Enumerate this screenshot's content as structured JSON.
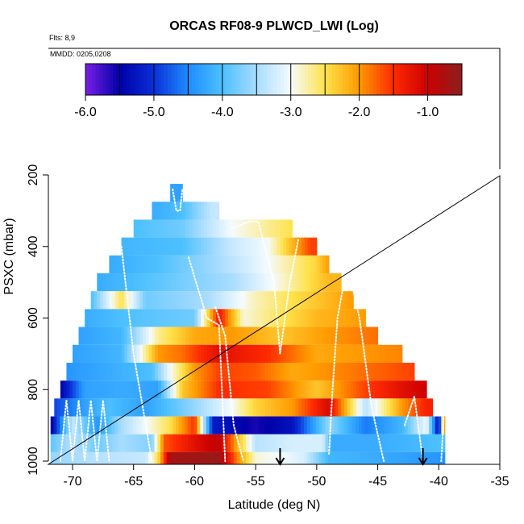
{
  "chart_data": {
    "type": "heatmap",
    "title": "ORCAS RF08-9 PLWCD_LWI (Log)",
    "flights_label": "Flts: 8,9",
    "dates_label": "MMDD: 0205,0208",
    "xlabel": "Latitude (deg N)",
    "ylabel": "PSXC (mbar)",
    "xlim": [
      -72,
      -35
    ],
    "ylim": [
      1000,
      100
    ],
    "x_ticks": [
      -70,
      -65,
      -60,
      -55,
      -50,
      -45,
      -40,
      -35
    ],
    "x_tick_labels": [
      "-70",
      "-65",
      "-60",
      "-55",
      "-50",
      "-45",
      "-40",
      "-35"
    ],
    "y_ticks": [
      200,
      400,
      600,
      800,
      1000
    ],
    "y_tick_labels": [
      "200",
      "400",
      "600",
      "800",
      "1000"
    ],
    "colorbar": {
      "range": [
        -6.0,
        -0.5
      ],
      "ticks": [
        -6.0,
        -5.0,
        -4.0,
        -3.0,
        -2.0,
        -1.0
      ],
      "tick_labels": [
        "-6.0",
        "-5.0",
        "-4.0",
        "-3.0",
        "-2.0",
        "-1.0"
      ],
      "stops": [
        {
          "v": -6.0,
          "c": "#7a1fe6"
        },
        {
          "v": -5.5,
          "c": "#0000a8"
        },
        {
          "v": -5.0,
          "c": "#0a2fd8"
        },
        {
          "v": -4.5,
          "c": "#1e8cff"
        },
        {
          "v": -4.0,
          "c": "#4cc0ff"
        },
        {
          "v": -3.5,
          "c": "#a8dcff"
        },
        {
          "v": -3.0,
          "c": "#f4fbff"
        },
        {
          "v": -2.5,
          "c": "#ffe24a"
        },
        {
          "v": -2.0,
          "c": "#ff9a00"
        },
        {
          "v": -1.5,
          "c": "#ff2a00"
        },
        {
          "v": -1.0,
          "c": "#cc0000"
        },
        {
          "v": -0.5,
          "c": "#8b2020"
        }
      ]
    },
    "profile_markers_lat": [
      -53,
      -41.3
    ],
    "bands": [
      {
        "p": 250,
        "lat_min": -62,
        "lat_max": -61,
        "anchors": [
          [
            -62,
            -4.3
          ],
          [
            -61,
            -4.3
          ]
        ]
      },
      {
        "p": 300,
        "lat_min": -63.5,
        "lat_max": -58,
        "anchors": [
          [
            -63.5,
            -4.2
          ],
          [
            -61,
            -4.0
          ],
          [
            -58.5,
            -3.3
          ]
        ]
      },
      {
        "p": 350,
        "lat_min": -65,
        "lat_max": -52,
        "anchors": [
          [
            -65,
            -4.0
          ],
          [
            -61,
            -3.8
          ],
          [
            -57,
            -3.0
          ],
          [
            -55,
            -2.8
          ],
          [
            -52,
            -2.5
          ]
        ]
      },
      {
        "p": 400,
        "lat_min": -66,
        "lat_max": -50,
        "anchors": [
          [
            -66,
            -4.1
          ],
          [
            -61,
            -4.0
          ],
          [
            -57,
            -3.3
          ],
          [
            -54,
            -3.0
          ],
          [
            -50.5,
            -1.6
          ]
        ]
      },
      {
        "p": 450,
        "lat_min": -67,
        "lat_max": -49,
        "anchors": [
          [
            -67,
            -4.2
          ],
          [
            -63,
            -4.0
          ],
          [
            -58,
            -3.5
          ],
          [
            -54,
            -3.0
          ],
          [
            -50,
            -2.4
          ],
          [
            -49,
            -2.0
          ]
        ]
      },
      {
        "p": 500,
        "lat_min": -68,
        "lat_max": -48,
        "anchors": [
          [
            -68,
            -4.2
          ],
          [
            -63,
            -3.9
          ],
          [
            -57,
            -3.5
          ],
          [
            -53,
            -2.9
          ],
          [
            -49,
            -2.2
          ]
        ]
      },
      {
        "p": 550,
        "lat_min": -68.5,
        "lat_max": -47,
        "anchors": [
          [
            -68.5,
            -4.0
          ],
          [
            -66,
            -2.5
          ],
          [
            -64,
            -3.8
          ],
          [
            -59,
            -3.5
          ],
          [
            -55,
            -2.8
          ],
          [
            -50,
            -2.3
          ],
          [
            -47,
            -2.0
          ]
        ]
      },
      {
        "p": 600,
        "lat_min": -69,
        "lat_max": -46,
        "anchors": [
          [
            -69,
            -4.2
          ],
          [
            -66,
            -4.0
          ],
          [
            -60,
            -3.8
          ],
          [
            -58,
            -1.3
          ],
          [
            -56,
            -2.9
          ],
          [
            -50,
            -2.2
          ],
          [
            -46,
            -2.0
          ]
        ]
      },
      {
        "p": 650,
        "lat_min": -69.5,
        "lat_max": -45,
        "anchors": [
          [
            -69.5,
            -4.3
          ],
          [
            -66,
            -4.1
          ],
          [
            -63,
            -2.7
          ],
          [
            -60,
            -2.1
          ],
          [
            -57,
            -2.0
          ],
          [
            -53,
            -2.3
          ],
          [
            -49,
            -2.0
          ],
          [
            -45,
            -1.8
          ]
        ]
      },
      {
        "p": 700,
        "lat_min": -70,
        "lat_max": -43,
        "anchors": [
          [
            -70,
            -4.3
          ],
          [
            -66,
            -4.1
          ],
          [
            -63,
            -2.0
          ],
          [
            -61,
            -1.8
          ],
          [
            -58,
            -1.2
          ],
          [
            -54,
            -1.5
          ],
          [
            -50,
            -2.1
          ],
          [
            -43,
            -1.9
          ]
        ]
      },
      {
        "p": 750,
        "lat_min": -70.5,
        "lat_max": -42,
        "anchors": [
          [
            -70.5,
            -4.4
          ],
          [
            -67,
            -4.2
          ],
          [
            -63.5,
            -4.0
          ],
          [
            -62,
            -3.0
          ],
          [
            -60,
            -2.0
          ],
          [
            -58,
            -1.6
          ],
          [
            -55,
            -1.7
          ],
          [
            -52,
            -2.1
          ],
          [
            -46,
            -1.8
          ],
          [
            -42,
            -1.6
          ]
        ]
      },
      {
        "p": 800,
        "lat_min": -71,
        "lat_max": -41,
        "anchors": [
          [
            -71,
            -5.5
          ],
          [
            -69,
            -4.3
          ],
          [
            -66,
            -4.2
          ],
          [
            -63,
            -4.3
          ],
          [
            -61,
            -2.3
          ],
          [
            -58,
            -1.5
          ],
          [
            -54,
            -1.6
          ],
          [
            -50,
            -2.3
          ],
          [
            -46,
            -1.6
          ],
          [
            -43,
            -1.2
          ],
          [
            -41,
            -1.0
          ]
        ]
      },
      {
        "p": 850,
        "lat_min": -71.5,
        "lat_max": -40.5,
        "anchors": [
          [
            -71.5,
            -4.9
          ],
          [
            -69,
            -4.3
          ],
          [
            -67,
            -4.0
          ],
          [
            -64,
            -4.3
          ],
          [
            -60,
            -3.6
          ],
          [
            -57,
            -3.0
          ],
          [
            -55,
            -2.4
          ],
          [
            -52,
            -2.0
          ],
          [
            -49,
            -1.1
          ],
          [
            -46,
            -3.4
          ],
          [
            -43,
            -2.0
          ],
          [
            -41,
            -1.4
          ]
        ]
      },
      {
        "p": 900,
        "lat_min": -71.8,
        "lat_max": -39.5,
        "anchors": [
          [
            -71.8,
            -5.6
          ],
          [
            -70,
            -3.3
          ],
          [
            -68,
            -4.4
          ],
          [
            -66,
            -3.5
          ],
          [
            -64,
            -3.0
          ],
          [
            -62,
            -2.5
          ],
          [
            -60,
            -1.5
          ],
          [
            -58.5,
            -5.2
          ],
          [
            -55,
            -5.6
          ],
          [
            -52,
            -5.3
          ],
          [
            -49,
            -3.6
          ],
          [
            -46,
            -4.6
          ],
          [
            -43,
            -4.1
          ],
          [
            -41,
            -3.0
          ],
          [
            -40,
            -5.5
          ],
          [
            -39.6,
            -2.0
          ]
        ]
      },
      {
        "p": 950,
        "lat_min": -71.8,
        "lat_max": -39.5,
        "anchors": [
          [
            -71.8,
            -3.9
          ],
          [
            -70,
            -3.4
          ],
          [
            -68,
            -3.8
          ],
          [
            -66,
            -3.5
          ],
          [
            -63.5,
            -3.7
          ],
          [
            -62.5,
            -1.7
          ],
          [
            -60,
            -1.2
          ],
          [
            -58,
            -0.9
          ],
          [
            -55,
            -3.4
          ],
          [
            -52,
            -3.2
          ],
          [
            -49.5,
            -3.2
          ],
          [
            -48.8,
            -4.2
          ],
          [
            -45,
            -4.2
          ],
          [
            -40,
            -4.0
          ]
        ]
      },
      {
        "p": 1000,
        "lat_min": -71.8,
        "lat_max": -39.5,
        "anchors": [
          [
            -71.8,
            -3.6
          ],
          [
            -68,
            -3.4
          ],
          [
            -64,
            -3.3
          ],
          [
            -63,
            -2.5
          ],
          [
            -62,
            -0.7
          ],
          [
            -58,
            -0.6
          ],
          [
            -56.5,
            -1.9
          ],
          [
            -55,
            -2.9
          ],
          [
            -53,
            -3.0
          ],
          [
            -51,
            -3.2
          ],
          [
            -49,
            -4.1
          ],
          [
            -45,
            -4.2
          ],
          [
            -40,
            -4.4
          ]
        ]
      }
    ],
    "flight_tracks": [
      [
        [
          -61.8,
          240
        ],
        [
          -61.5,
          300
        ],
        [
          -61.2,
          300
        ],
        [
          -61,
          240
        ]
      ],
      [
        [
          -57,
          350
        ],
        [
          -55.5,
          330
        ],
        [
          -54.8,
          330
        ],
        [
          -53.5,
          500
        ],
        [
          -53,
          700
        ],
        [
          -52.2,
          500
        ],
        [
          -51.5,
          380
        ]
      ],
      [
        [
          -60.5,
          430
        ],
        [
          -59,
          600
        ],
        [
          -58,
          620
        ],
        [
          -57.5,
          1000
        ]
      ],
      [
        [
          -66,
          400
        ],
        [
          -65,
          700
        ],
        [
          -64,
          900
        ],
        [
          -63.5,
          1000
        ]
      ],
      [
        [
          -58.3,
          570
        ],
        [
          -57.5,
          650
        ],
        [
          -56.8,
          900
        ],
        [
          -56,
          1000
        ]
      ],
      [
        [
          -71,
          1000
        ],
        [
          -70.5,
          830
        ],
        [
          -70,
          1000
        ],
        [
          -69.5,
          830
        ],
        [
          -69,
          1000
        ],
        [
          -68.5,
          830
        ],
        [
          -68,
          1000
        ],
        [
          -67.5,
          830
        ],
        [
          -67,
          1000
        ]
      ],
      [
        [
          -49,
          980
        ],
        [
          -48.7,
          800
        ],
        [
          -48.3,
          600
        ],
        [
          -47.5,
          450
        ],
        [
          -46.5,
          600
        ],
        [
          -45.5,
          850
        ],
        [
          -44.5,
          1000
        ]
      ],
      [
        [
          -42.8,
          900
        ],
        [
          -42,
          820
        ],
        [
          -41.3,
          1000
        ]
      ],
      [
        [
          -39.8,
          1000
        ],
        [
          -39.6,
          880
        ]
      ]
    ]
  }
}
